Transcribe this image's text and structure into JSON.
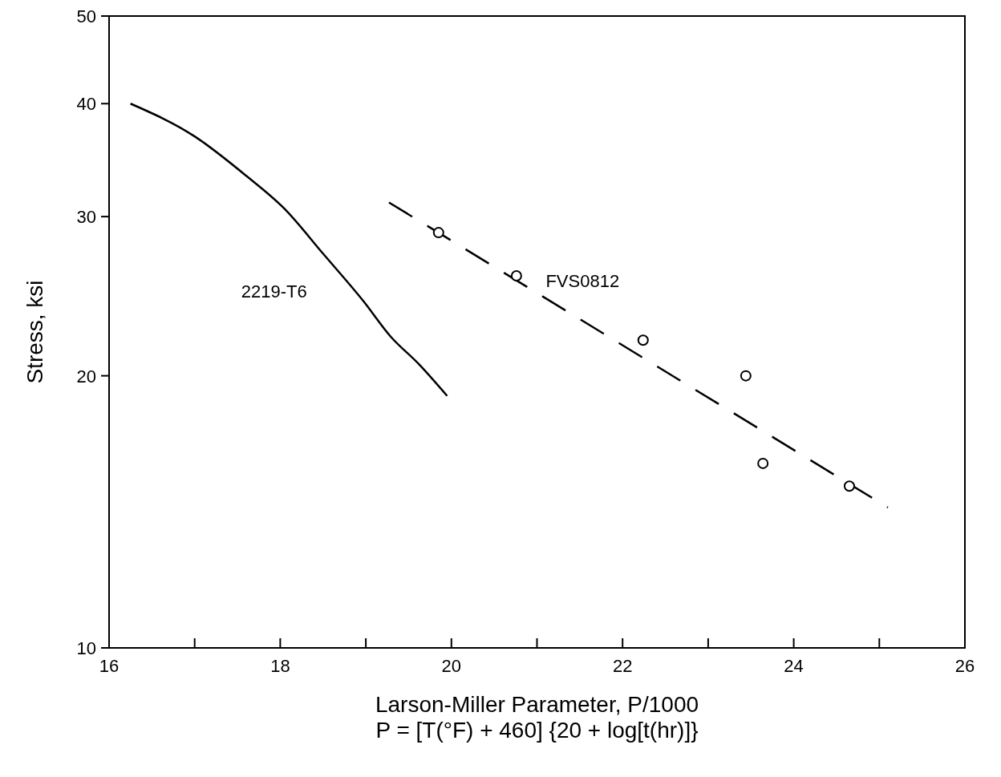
{
  "chart_data": {
    "type": "line",
    "xlabel": "Larson-Miller Parameter, P/1000\nP = [T(°F) + 460] {20 + log[t(hr)]}",
    "ylabel": "Stress, ksi",
    "log": "y",
    "xlim": [
      16,
      26
    ],
    "ylim": [
      10,
      50
    ],
    "xticks": [
      16,
      {
        "value": 17,
        "label": null
      },
      18,
      {
        "value": 19,
        "label": null
      },
      20,
      {
        "value": 21,
        "label": null
      },
      22,
      {
        "value": 23,
        "label": null
      },
      24,
      {
        "value": 25,
        "label": null
      },
      26
    ],
    "yticks": [
      10,
      20,
      30,
      40,
      50
    ],
    "grid": false,
    "series": [
      {
        "name": "2219-T6",
        "color": "#000000",
        "line_style": "solid",
        "marker": "none",
        "x": [
          16.25,
          17.0,
          17.6,
          18.05,
          18.5,
          18.97,
          19.29,
          19.62,
          19.95
        ],
        "values": [
          40,
          36.8,
          33.3,
          30.6,
          27.3,
          24.2,
          22.1,
          20.6,
          19
        ]
      },
      {
        "name": "FVS0812",
        "color": "#000000",
        "line_style": "dashed",
        "marker": "none",
        "x": [
          19.27,
          25.1
        ],
        "values": [
          31.1,
          14.3
        ]
      },
      {
        "type": "scatter",
        "color": "#000000",
        "marker": "circle",
        "x": [
          19.85,
          20.76,
          22.24,
          23.44,
          23.64,
          24.65
        ],
        "values": [
          28.8,
          25.8,
          21.9,
          20.0,
          16.0,
          15.1
        ]
      }
    ]
  }
}
